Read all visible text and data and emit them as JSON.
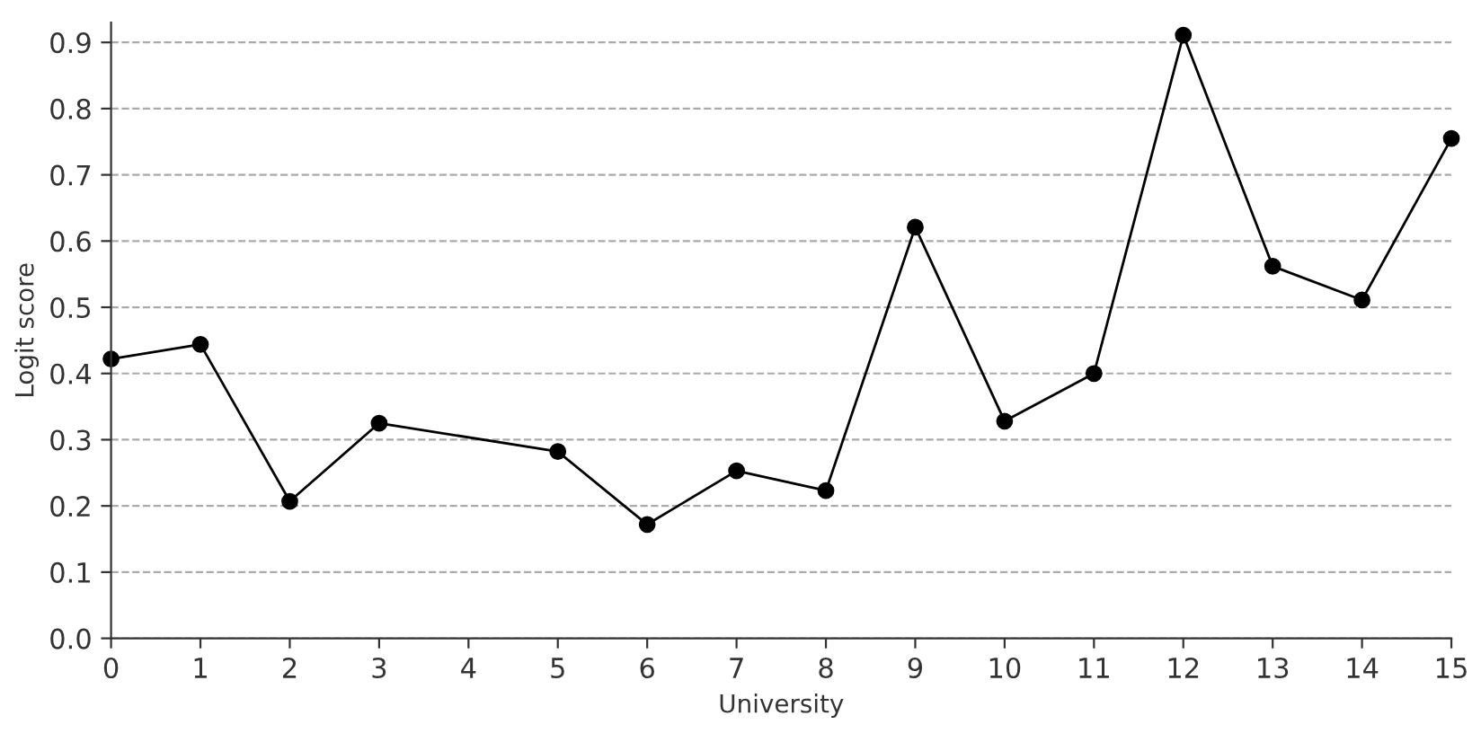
{
  "chart_data": {
    "type": "line",
    "xlabel": "University",
    "ylabel": "Logit score",
    "x": [
      0,
      1,
      2,
      3,
      5,
      6,
      7,
      8,
      9,
      10,
      11,
      12,
      13,
      14,
      15
    ],
    "series": [
      {
        "color": "#000000",
        "values": [
          0.422,
          0.444,
          0.207,
          0.325,
          0.282,
          0.172,
          0.253,
          0.223,
          0.621,
          0.328,
          0.4,
          0.911,
          0.562,
          0.511,
          0.755
        ]
      }
    ],
    "xlim": [
      0,
      15
    ],
    "xticks": [
      0,
      1,
      2,
      3,
      4,
      5,
      6,
      7,
      8,
      9,
      10,
      11,
      12,
      13,
      14,
      15
    ],
    "ylim": [
      0,
      0.93
    ],
    "yticks": [
      {
        "value": 0,
        "label": "0.0"
      },
      0.1,
      0.2,
      0.3,
      0.4,
      0.5,
      0.6,
      0.7,
      0.8,
      0.9
    ],
    "grid": "y",
    "marker": "circle",
    "line_style": "solid",
    "legend": false
  }
}
